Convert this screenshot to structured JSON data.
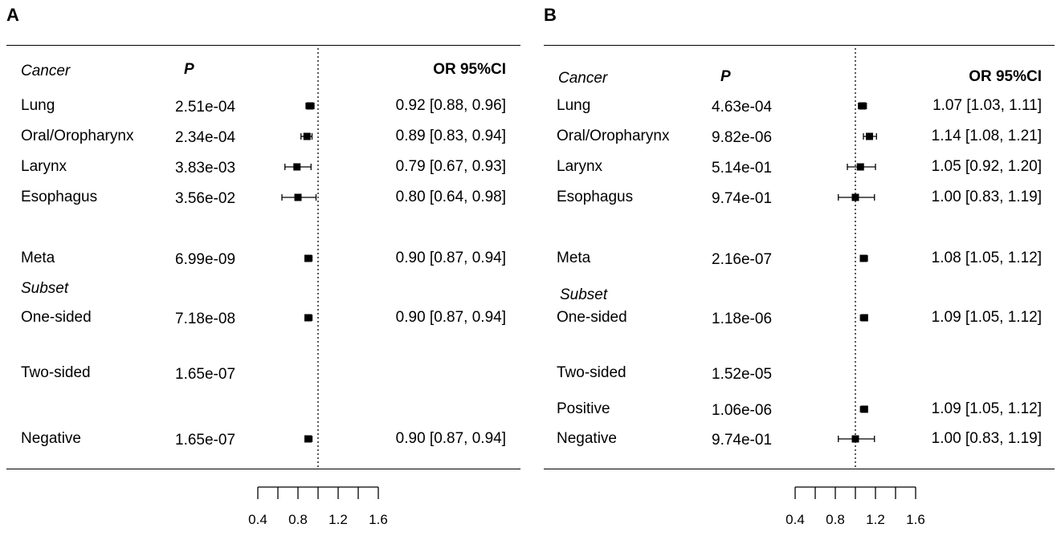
{
  "chart_data": [
    {
      "type": "forest",
      "panel_label": "A",
      "headers": {
        "cancer": "Cancer",
        "p": "P",
        "or": "OR  95%CI"
      },
      "subset_label": "Subset",
      "reference_line": 1.0,
      "xticks": [
        0.4,
        0.6,
        0.8,
        1.0,
        1.2,
        1.4,
        1.6
      ],
      "xtick_labels": [
        "0.4",
        "0.8",
        "1.2",
        "1.6"
      ],
      "xlim": [
        0.4,
        1.6
      ],
      "rows": [
        {
          "label": "Lung",
          "p": "2.51e-04",
          "or": 0.92,
          "lo": 0.88,
          "hi": 0.96,
          "or_text": "0.92 [0.88, 0.96]"
        },
        {
          "label": "Oral/Oropharynx",
          "p": "2.34e-04",
          "or": 0.89,
          "lo": 0.83,
          "hi": 0.94,
          "or_text": "0.89 [0.83, 0.94]"
        },
        {
          "label": "Larynx",
          "p": "3.83e-03",
          "or": 0.79,
          "lo": 0.67,
          "hi": 0.93,
          "or_text": "0.79 [0.67, 0.93]"
        },
        {
          "label": "Esophagus",
          "p": "3.56e-02",
          "or": 0.8,
          "lo": 0.64,
          "hi": 0.98,
          "or_text": "0.80 [0.64, 0.98]"
        },
        {
          "label": "Meta",
          "p": "6.99e-09",
          "or": 0.9,
          "lo": 0.87,
          "hi": 0.94,
          "or_text": "0.90 [0.87, 0.94]"
        },
        {
          "label": "One-sided",
          "p": "7.18e-08",
          "or": 0.9,
          "lo": 0.87,
          "hi": 0.94,
          "or_text": "0.90 [0.87, 0.94]"
        },
        {
          "label": "Two-sided",
          "p": "1.65e-07",
          "or": null,
          "lo": null,
          "hi": null,
          "or_text": ""
        },
        {
          "label": "Negative",
          "p": "1.65e-07",
          "or": 0.9,
          "lo": 0.87,
          "hi": 0.94,
          "or_text": "0.90 [0.87, 0.94]"
        }
      ]
    },
    {
      "type": "forest",
      "panel_label": "B",
      "headers": {
        "cancer": "Cancer",
        "p": "P",
        "or": "OR  95%CI"
      },
      "subset_label": "Subset",
      "reference_line": 1.0,
      "xticks": [
        0.4,
        0.6,
        0.8,
        1.0,
        1.2,
        1.4,
        1.6
      ],
      "xtick_labels": [
        "0.4",
        "0.8",
        "1.2",
        "1.6"
      ],
      "xlim": [
        0.4,
        1.6
      ],
      "rows": [
        {
          "label": "Lung",
          "p": "4.63e-04",
          "or": 1.07,
          "lo": 1.03,
          "hi": 1.11,
          "or_text": "1.07 [1.03, 1.11]"
        },
        {
          "label": "Oral/Oropharynx",
          "p": "9.82e-06",
          "or": 1.14,
          "lo": 1.08,
          "hi": 1.21,
          "or_text": "1.14 [1.08, 1.21]"
        },
        {
          "label": "Larynx",
          "p": "5.14e-01",
          "or": 1.05,
          "lo": 0.92,
          "hi": 1.2,
          "or_text": "1.05 [0.92, 1.20]"
        },
        {
          "label": "Esophagus",
          "p": "9.74e-01",
          "or": 1.0,
          "lo": 0.83,
          "hi": 1.19,
          "or_text": "1.00 [0.83, 1.19]"
        },
        {
          "label": "Meta",
          "p": "2.16e-07",
          "or": 1.08,
          "lo": 1.05,
          "hi": 1.12,
          "or_text": "1.08 [1.05, 1.12]"
        },
        {
          "label": "One-sided",
          "p": "1.18e-06",
          "or": 1.09,
          "lo": 1.05,
          "hi": 1.12,
          "or_text": "1.09 [1.05, 1.12]"
        },
        {
          "label": "Two-sided",
          "p": "1.52e-05",
          "or": null,
          "lo": null,
          "hi": null,
          "or_text": ""
        },
        {
          "label": "Positive",
          "p": "1.06e-06",
          "or": 1.09,
          "lo": 1.05,
          "hi": 1.12,
          "or_text": "1.09 [1.05, 1.12]"
        },
        {
          "label": "Negative",
          "p": "9.74e-01",
          "or": 1.0,
          "lo": 0.83,
          "hi": 1.19,
          "or_text": "1.00 [0.83, 1.19]"
        }
      ]
    }
  ]
}
